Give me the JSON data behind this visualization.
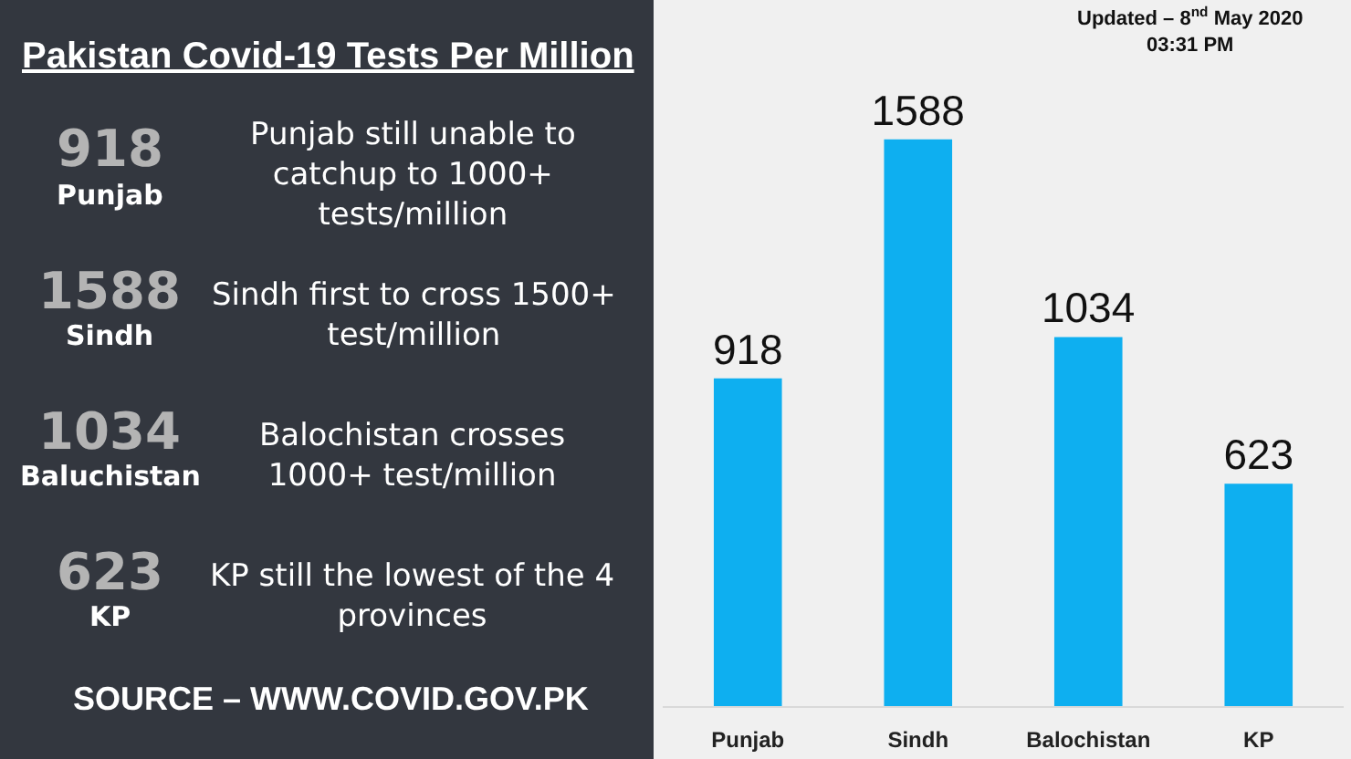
{
  "chart_data": [
    {
      "type": "other",
      "title": "Pakistan Covid-19 Tests Per Million",
      "annotations": [
        "918",
        "Punjab",
        "Punjab still unable to\ncatchup to 1000+\ntests/million",
        "1588",
        "Sindh",
        "Sindh first to cross 1500+\ntest/million",
        "1034",
        "Baluchistan",
        "Balochistan crosses\n1000+ test/million",
        "623",
        "KP",
        "KP still the lowest of the 4\nprovinces",
        "SOURCE – WWW.COVID.GOV.PK"
      ]
    },
    {
      "type": "bar",
      "categories": [
        "Punjab",
        "Sindh",
        "Balochistan",
        "KP"
      ],
      "values": [
        918,
        1588,
        1034,
        623
      ],
      "color": "#0eaff0",
      "data_labels": true,
      "tick_labels": "x",
      "annotations": [
        "Updated – 8$^{nd}$ May 2020\n03:31 PM"
      ]
    }
  ]
}
